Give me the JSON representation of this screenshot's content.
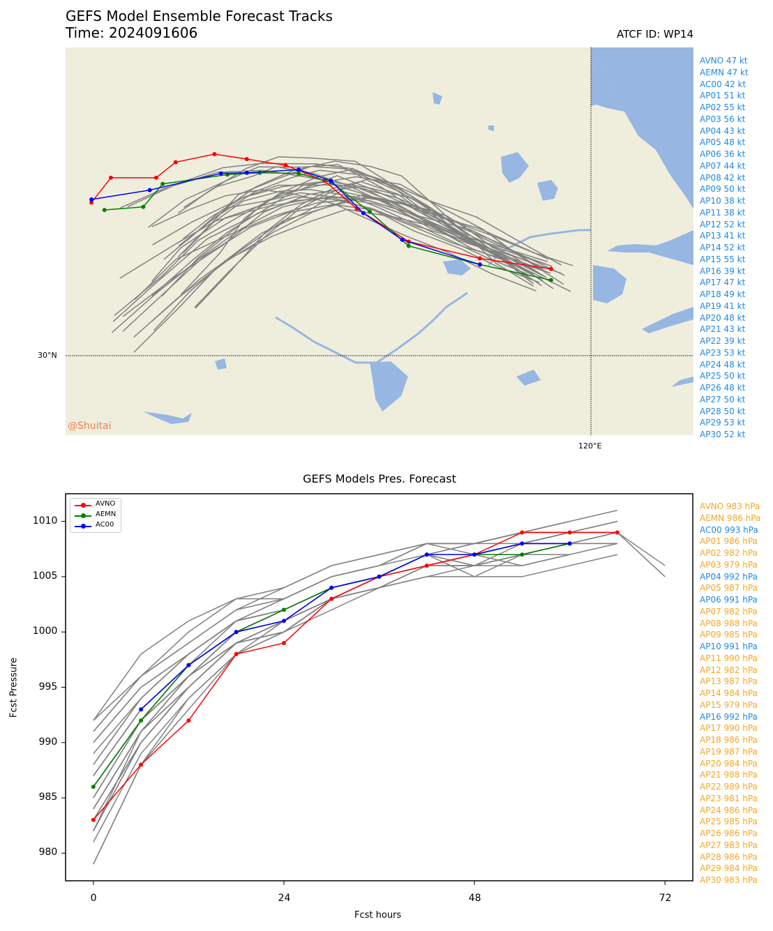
{
  "header": {
    "title": "GEFS Model Ensemble Forecast Tracks",
    "time": "Time: 2024091606",
    "atcf": "ATCF ID: WP14"
  },
  "map": {
    "lat_label": "30°N",
    "lon_label": "120°E",
    "watermark": "@Shuitai",
    "colors": {
      "land": "#efeedd",
      "water": "#97b6e1",
      "ensemble": "#808080",
      "AVNO": "#ff0000",
      "AEMN": "#008000",
      "AC00": "#0000ff"
    }
  },
  "wind_list": [
    "AVNO 47 kt",
    "AEMN 47 kt",
    "AC00 42 kt",
    "AP01 51 kt",
    "AP02 55 kt",
    "AP03 56 kt",
    "AP04 43 kt",
    "AP05 48 kt",
    "AP06 36 kt",
    "AP07 44 kt",
    "AP08 42 kt",
    "AP09 50 kt",
    "AP10 38 kt",
    "AP11 38 kt",
    "AP12 52 kt",
    "AP13 41 kt",
    "AP14 52 kt",
    "AP15 55 kt",
    "AP16 39 kt",
    "AP17 47 kt",
    "AP18 49 kt",
    "AP19 41 kt",
    "AP20 48 kt",
    "AP21 43 kt",
    "AP22 39 kt",
    "AP23 53 kt",
    "AP24 48 kt",
    "AP25 50 kt",
    "AP26 48 kt",
    "AP27 50 kt",
    "AP28 50 kt",
    "AP29 53 kt",
    "AP30 52 kt"
  ],
  "pressure_list": [
    {
      "text": "AVNO 983 hPa",
      "color": "#f5a623"
    },
    {
      "text": "AEMN 986 hPa",
      "color": "#f5a623"
    },
    {
      "text": "AC00 993 hPa",
      "color": "#1f88e5"
    },
    {
      "text": "AP01 986 hPa",
      "color": "#f5a623"
    },
    {
      "text": "AP02 982 hPa",
      "color": "#f5a623"
    },
    {
      "text": "AP03 979 hPa",
      "color": "#f5a623"
    },
    {
      "text": "AP04 992 hPa",
      "color": "#1f88e5"
    },
    {
      "text": "AP05 987 hPa",
      "color": "#f5a623"
    },
    {
      "text": "AP06 991 hPa",
      "color": "#1f88e5"
    },
    {
      "text": "AP07 982 hPa",
      "color": "#f5a623"
    },
    {
      "text": "AP08 988 hPa",
      "color": "#f5a623"
    },
    {
      "text": "AP09 985 hPa",
      "color": "#f5a623"
    },
    {
      "text": "AP10 991 hPa",
      "color": "#1f88e5"
    },
    {
      "text": "AP11 990 hPa",
      "color": "#f5a623"
    },
    {
      "text": "AP12 982 hPa",
      "color": "#f5a623"
    },
    {
      "text": "AP13 987 hPa",
      "color": "#f5a623"
    },
    {
      "text": "AP14 984 hPa",
      "color": "#f5a623"
    },
    {
      "text": "AP15 979 hPa",
      "color": "#f5a623"
    },
    {
      "text": "AP16 992 hPa",
      "color": "#1f88e5"
    },
    {
      "text": "AP17 990 hPa",
      "color": "#f5a623"
    },
    {
      "text": "AP18 986 hPa",
      "color": "#f5a623"
    },
    {
      "text": "AP19 987 hPa",
      "color": "#f5a623"
    },
    {
      "text": "AP20 984 hPa",
      "color": "#f5a623"
    },
    {
      "text": "AP21 988 hPa",
      "color": "#f5a623"
    },
    {
      "text": "AP22 989 hPa",
      "color": "#f5a623"
    },
    {
      "text": "AP23 981 hPa",
      "color": "#f5a623"
    },
    {
      "text": "AP24 986 hPa",
      "color": "#f5a623"
    },
    {
      "text": "AP25 985 hPa",
      "color": "#f5a623"
    },
    {
      "text": "AP26 986 hPa",
      "color": "#f5a623"
    },
    {
      "text": "AP27 983 hPa",
      "color": "#f5a623"
    },
    {
      "text": "AP28 986 hPa",
      "color": "#f5a623"
    },
    {
      "text": "AP29 984 hPa",
      "color": "#f5a623"
    },
    {
      "text": "AP30 983 hPa",
      "color": "#f5a623"
    }
  ],
  "chart_data": {
    "type": "line",
    "title": "GEFS Models Pres. Forecast",
    "xlabel": "Fcst hours",
    "ylabel": "Fcst Pressure",
    "xlim": [
      -3.5,
      75.5
    ],
    "ylim": [
      977.5,
      1012.5
    ],
    "xticks": [
      0,
      24,
      48,
      72
    ],
    "yticks": [
      980,
      985,
      990,
      995,
      1000,
      1005,
      1010
    ],
    "grid": false,
    "legend": {
      "position": "top-left",
      "entries": [
        "AVNO",
        "AEMN",
        "AC00"
      ]
    },
    "highlight_series": [
      {
        "name": "AVNO",
        "color": "#ff0000",
        "x": [
          0,
          6,
          12,
          18,
          24,
          30,
          36,
          42,
          48,
          54,
          60,
          66
        ],
        "y": [
          983,
          988,
          992,
          998,
          999,
          1003,
          1005,
          1006,
          1007,
          1009,
          1009,
          1009
        ]
      },
      {
        "name": "AEMN",
        "color": "#008000",
        "x": [
          0,
          6,
          12,
          18,
          24,
          30,
          36,
          42,
          48,
          54,
          60
        ],
        "y": [
          986,
          992,
          997,
          1000,
          1002,
          1004,
          1005,
          1007,
          1007,
          1007,
          1008
        ]
      },
      {
        "name": "AC00",
        "color": "#0000ff",
        "x": [
          6,
          12,
          18,
          24,
          30,
          36,
          42,
          48,
          54,
          60
        ],
        "y": [
          993,
          997,
          1000,
          1001,
          1004,
          1005,
          1007,
          1007,
          1008,
          1008
        ]
      }
    ],
    "ensemble_series": [
      {
        "name": "AP01",
        "x": [
          0,
          6,
          12,
          18,
          24,
          30,
          36,
          42,
          48,
          54,
          60,
          66
        ],
        "y": [
          986,
          992,
          997,
          1000,
          1002,
          1004,
          1005,
          1007,
          1007,
          1008,
          1009,
          1010
        ]
      },
      {
        "name": "AP02",
        "x": [
          0,
          6,
          12,
          18,
          24,
          30,
          36,
          42,
          48,
          54,
          60,
          66
        ],
        "y": [
          982,
          990,
          995,
          999,
          1000,
          1003,
          1005,
          1006,
          1007,
          1008,
          1008,
          1009
        ]
      },
      {
        "name": "AP03",
        "x": [
          0,
          6,
          12,
          18,
          24,
          30,
          36,
          42,
          48,
          54,
          60,
          66
        ],
        "y": [
          979,
          988,
          994,
          998,
          1001,
          1003,
          1005,
          1006,
          1007,
          1007,
          1008,
          1008
        ]
      },
      {
        "name": "AP04",
        "x": [
          0,
          6,
          12,
          18,
          24,
          30,
          36,
          42,
          48,
          54,
          60
        ],
        "y": [
          992,
          998,
          1001,
          1003,
          1004,
          1006,
          1007,
          1008,
          1008,
          1009,
          1010
        ]
      },
      {
        "name": "AP05",
        "x": [
          0,
          6,
          12,
          18,
          24,
          30,
          36,
          42,
          48,
          54,
          60
        ],
        "y": [
          987,
          993,
          997,
          1001,
          1002,
          1004,
          1005,
          1007,
          1006,
          1008,
          1008
        ]
      },
      {
        "name": "AP06",
        "x": [
          0,
          6,
          12,
          18,
          24,
          30,
          36,
          42,
          48,
          54,
          60,
          66,
          72
        ],
        "y": [
          991,
          996,
          1000,
          1003,
          1003,
          1005,
          1006,
          1008,
          1008,
          1009,
          1009,
          1009,
          1006
        ]
      },
      {
        "name": "AP07",
        "x": [
          0,
          6,
          12,
          18,
          24,
          30,
          36,
          42,
          48,
          54,
          60,
          66
        ],
        "y": [
          982,
          991,
          996,
          999,
          1001,
          1004,
          1005,
          1007,
          1007,
          1007,
          1008,
          1008
        ]
      },
      {
        "name": "AP08",
        "x": [
          0,
          6,
          12,
          18,
          24,
          30,
          36,
          42,
          48,
          54,
          60,
          66
        ],
        "y": [
          988,
          994,
          998,
          1001,
          1003,
          1005,
          1006,
          1007,
          1008,
          1009,
          1009,
          1010
        ]
      },
      {
        "name": "AP09",
        "x": [
          0,
          6,
          12,
          18,
          24,
          30,
          36,
          42,
          48,
          54,
          60
        ],
        "y": [
          985,
          992,
          996,
          1000,
          1001,
          1004,
          1005,
          1007,
          1007,
          1008,
          1008
        ]
      },
      {
        "name": "AP10",
        "x": [
          0,
          6,
          12,
          18,
          24,
          30,
          36,
          42,
          48,
          54,
          60,
          66,
          72
        ],
        "y": [
          991,
          996,
          999,
          1002,
          1003,
          1005,
          1006,
          1008,
          1008,
          1009,
          1009,
          1009,
          1005
        ]
      },
      {
        "name": "AP11",
        "x": [
          0,
          6,
          12,
          18,
          24,
          30,
          36,
          42,
          48,
          54,
          60,
          66
        ],
        "y": [
          990,
          995,
          998,
          1001,
          1002,
          1004,
          1005,
          1007,
          1007,
          1008,
          1008,
          1009
        ]
      },
      {
        "name": "AP12",
        "x": [
          0,
          6,
          12,
          18,
          24,
          30,
          36,
          42,
          48,
          54,
          60
        ],
        "y": [
          982,
          990,
          995,
          999,
          1000,
          1003,
          1004,
          1006,
          1006,
          1007,
          1007
        ]
      },
      {
        "name": "AP13",
        "x": [
          0,
          6,
          12,
          18,
          24,
          30,
          36,
          42,
          48,
          54,
          60,
          66
        ],
        "y": [
          987,
          993,
          997,
          1000,
          1002,
          1004,
          1005,
          1007,
          1005,
          1007,
          1007,
          1008
        ]
      },
      {
        "name": "AP14",
        "x": [
          0,
          6,
          12,
          18,
          24,
          30,
          36,
          42,
          48,
          54,
          60,
          66
        ],
        "y": [
          984,
          991,
          995,
          999,
          1000,
          1003,
          1004,
          1005,
          1005,
          1005,
          1006,
          1007
        ]
      },
      {
        "name": "AP15",
        "x": [
          0,
          6,
          12,
          18,
          24,
          30,
          36,
          42,
          48,
          54,
          60
        ],
        "y": [
          979,
          988,
          993,
          998,
          1000,
          1002,
          1004,
          1006,
          1006,
          1007,
          1007
        ]
      },
      {
        "name": "AP16",
        "x": [
          0,
          6,
          12,
          18,
          24,
          30,
          36,
          42,
          48,
          54,
          60,
          66
        ],
        "y": [
          992,
          996,
          999,
          1002,
          1004,
          1006,
          1007,
          1008,
          1008,
          1009,
          1010,
          1011
        ]
      },
      {
        "name": "AP17",
        "x": [
          0,
          6,
          12,
          18,
          24,
          30,
          36,
          42,
          48,
          54,
          60
        ],
        "y": [
          990,
          995,
          998,
          1001,
          1002,
          1004,
          1005,
          1007,
          1007,
          1008,
          1008
        ]
      },
      {
        "name": "AP18",
        "x": [
          0,
          6,
          12,
          18,
          24,
          30,
          36,
          42,
          48,
          54,
          60
        ],
        "y": [
          986,
          992,
          997,
          1000,
          1002,
          1004,
          1005,
          1007,
          1007,
          1006,
          1007
        ]
      },
      {
        "name": "AP19",
        "x": [
          0,
          6,
          12,
          18,
          24,
          30,
          36,
          42,
          48,
          54,
          60
        ],
        "y": [
          987,
          993,
          997,
          1000,
          1001,
          1004,
          1005,
          1007,
          1007,
          1008,
          1008
        ]
      },
      {
        "name": "AP20",
        "x": [
          0,
          6,
          12,
          18,
          24,
          30,
          36,
          42,
          48,
          54,
          60
        ],
        "y": [
          984,
          991,
          996,
          999,
          1001,
          1003,
          1005,
          1006,
          1007,
          1007,
          1008
        ]
      },
      {
        "name": "AP21",
        "x": [
          0,
          6,
          12,
          18,
          24,
          30,
          36,
          42,
          48,
          54,
          60
        ],
        "y": [
          988,
          994,
          998,
          1001,
          1002,
          1004,
          1005,
          1007,
          1008,
          1008,
          1009
        ]
      },
      {
        "name": "AP22",
        "x": [
          0,
          6,
          12,
          18,
          24,
          30,
          36,
          42,
          48,
          54,
          60
        ],
        "y": [
          989,
          994,
          998,
          1001,
          1003,
          1005,
          1006,
          1008,
          1007,
          1008,
          1008
        ]
      },
      {
        "name": "AP23",
        "x": [
          0,
          6,
          12,
          18,
          24,
          30,
          36,
          42,
          48,
          54,
          60
        ],
        "y": [
          981,
          989,
          994,
          998,
          1000,
          1003,
          1005,
          1006,
          1007,
          1007,
          1008
        ]
      },
      {
        "name": "AP24",
        "x": [
          0,
          6,
          12,
          18,
          24,
          30,
          36,
          42,
          48,
          54,
          60
        ],
        "y": [
          986,
          992,
          996,
          1000,
          1001,
          1004,
          1005,
          1007,
          1007,
          1008,
          1008
        ]
      },
      {
        "name": "AP25",
        "x": [
          0,
          6,
          12,
          18,
          24,
          30,
          36,
          42,
          48,
          54,
          60
        ],
        "y": [
          985,
          992,
          996,
          999,
          1001,
          1003,
          1005,
          1006,
          1007,
          1007,
          1008
        ]
      },
      {
        "name": "AP26",
        "x": [
          0,
          6,
          12,
          18,
          24,
          30,
          36,
          42,
          48,
          54,
          60
        ],
        "y": [
          986,
          992,
          997,
          1000,
          1002,
          1004,
          1005,
          1007,
          1006,
          1007,
          1007
        ]
      },
      {
        "name": "AP27",
        "x": [
          0,
          6,
          12,
          18,
          24,
          30,
          36,
          42,
          48,
          54,
          60
        ],
        "y": [
          983,
          990,
          995,
          999,
          1001,
          1003,
          1005,
          1006,
          1007,
          1008,
          1008
        ]
      },
      {
        "name": "AP28",
        "x": [
          0,
          6,
          12,
          18,
          24,
          30,
          36,
          42,
          48,
          54,
          60
        ],
        "y": [
          986,
          992,
          996,
          1000,
          1001,
          1004,
          1005,
          1007,
          1007,
          1008,
          1009
        ]
      },
      {
        "name": "AP29",
        "x": [
          0,
          6,
          12,
          18,
          24,
          30,
          36,
          42,
          48,
          54,
          60
        ],
        "y": [
          984,
          991,
          995,
          999,
          1000,
          1003,
          1004,
          1006,
          1006,
          1007,
          1007
        ]
      },
      {
        "name": "AP30",
        "x": [
          0,
          6,
          12,
          18,
          24,
          30,
          36,
          42,
          48,
          54,
          60
        ],
        "y": [
          983,
          990,
          995,
          999,
          1000,
          1003,
          1004,
          1005,
          1006,
          1006,
          1007
        ]
      }
    ]
  },
  "track_chart": {
    "type": "line",
    "title": "GEFS Model Ensemble Forecast Tracks",
    "note": "track positions in map coordinates (lon, lat)",
    "xlim_lon": [
      111.9,
      121.6
    ],
    "ylim_lat": [
      28.75,
      35.0
    ],
    "tracks": [
      {
        "name": "AVNO",
        "color": "#ff0000",
        "lon": [
          119.4,
          118.3,
          117.2,
          116.4,
          115.9,
          115.3,
          114.7,
          114.2,
          113.6,
          113.3,
          112.6,
          112.3
        ],
        "lat": [
          31.43,
          31.6,
          31.87,
          32.4,
          32.85,
          33.1,
          33.2,
          33.28,
          33.15,
          32.9,
          32.9,
          32.5
        ]
      },
      {
        "name": "AEMN",
        "color": "#008000",
        "lon": [
          119.4,
          118.3,
          117.2,
          116.6,
          116.0,
          115.5,
          114.9,
          114.4,
          113.4,
          113.1,
          112.5
        ],
        "lat": [
          31.25,
          31.5,
          31.8,
          32.35,
          32.83,
          32.97,
          32.98,
          32.95,
          32.8,
          32.43,
          32.38
        ]
      },
      {
        "name": "AC00",
        "color": "#0000ff",
        "lon": [
          118.3,
          117.1,
          116.5,
          116.0,
          115.5,
          114.7,
          114.3,
          113.2,
          112.3
        ],
        "lat": [
          31.5,
          31.9,
          32.33,
          32.85,
          33.03,
          32.98,
          32.97,
          32.7,
          32.55
        ]
      }
    ]
  }
}
